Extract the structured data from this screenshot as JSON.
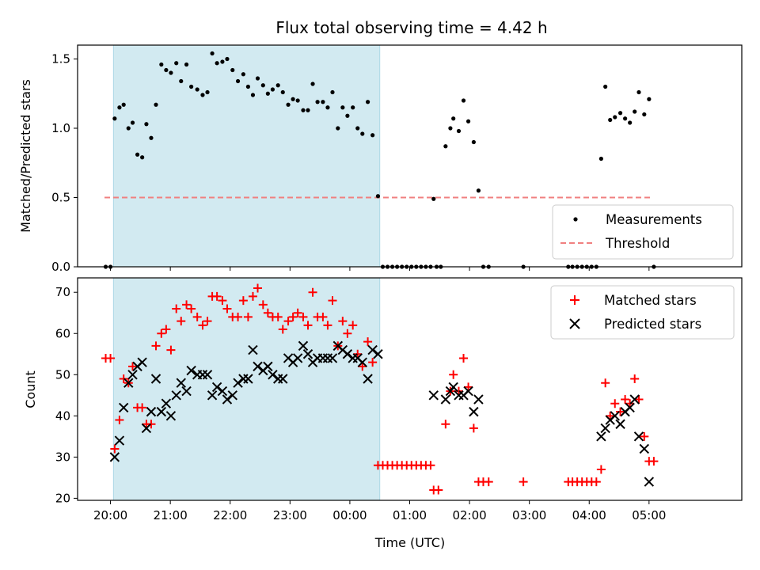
{
  "chart_data": {
    "type": "scatter",
    "title": "Flux total observing time = 4.42 h",
    "xlabel": "Time (UTC)",
    "x_unit": "hours",
    "x_ticks": [
      {
        "x": 20,
        "label": "20:00"
      },
      {
        "x": 21,
        "label": "21:00"
      },
      {
        "x": 22,
        "label": "22:00"
      },
      {
        "x": 23,
        "label": "23:00"
      },
      {
        "x": 24,
        "label": "00:00"
      },
      {
        "x": 25,
        "label": "01:00"
      },
      {
        "x": 26,
        "label": "02:00"
      },
      {
        "x": 27,
        "label": "03:00"
      },
      {
        "x": 28,
        "label": "04:00"
      },
      {
        "x": 29,
        "label": "05:00"
      }
    ],
    "xlim": [
      19.45,
      30.55
    ],
    "shaded_interval": [
      20.05,
      24.5
    ],
    "shade_color": "#add8e6",
    "top": {
      "ylabel": "Matched/Predicted stars",
      "ylim": [
        0,
        1.6
      ],
      "y_ticks": [
        0.0,
        0.5,
        1.0,
        1.5
      ],
      "y_tick_labels": [
        "0.0",
        "0.5",
        "1.0",
        "1.5"
      ],
      "legend": {
        "position": "lower-right",
        "measurements_label": "Measurements",
        "threshold_label": "Threshold"
      },
      "threshold": {
        "value": 0.5,
        "x": [
          19.9,
          29.05
        ],
        "color": "#f08080"
      },
      "measurements": [
        [
          19.92,
          0.0
        ],
        [
          20.0,
          0.0
        ],
        [
          20.07,
          1.07
        ],
        [
          20.15,
          1.15
        ],
        [
          20.22,
          1.17
        ],
        [
          20.3,
          1.0
        ],
        [
          20.37,
          1.04
        ],
        [
          20.45,
          0.81
        ],
        [
          20.53,
          0.79
        ],
        [
          20.6,
          1.03
        ],
        [
          20.68,
          0.93
        ],
        [
          20.76,
          1.17
        ],
        [
          20.85,
          1.46
        ],
        [
          20.93,
          1.42
        ],
        [
          21.01,
          1.4
        ],
        [
          21.1,
          1.47
        ],
        [
          21.18,
          1.34
        ],
        [
          21.27,
          1.46
        ],
        [
          21.35,
          1.3
        ],
        [
          21.45,
          1.28
        ],
        [
          21.54,
          1.24
        ],
        [
          21.62,
          1.26
        ],
        [
          21.7,
          1.54
        ],
        [
          21.78,
          1.47
        ],
        [
          21.87,
          1.48
        ],
        [
          21.95,
          1.5
        ],
        [
          22.04,
          1.42
        ],
        [
          22.13,
          1.34
        ],
        [
          22.22,
          1.39
        ],
        [
          22.3,
          1.3
        ],
        [
          22.38,
          1.24
        ],
        [
          22.46,
          1.36
        ],
        [
          22.55,
          1.31
        ],
        [
          22.63,
          1.25
        ],
        [
          22.71,
          1.28
        ],
        [
          22.8,
          1.31
        ],
        [
          22.88,
          1.26
        ],
        [
          22.97,
          1.17
        ],
        [
          23.05,
          1.21
        ],
        [
          23.13,
          1.2
        ],
        [
          23.22,
          1.13
        ],
        [
          23.3,
          1.13
        ],
        [
          23.38,
          1.32
        ],
        [
          23.46,
          1.19
        ],
        [
          23.55,
          1.19
        ],
        [
          23.63,
          1.15
        ],
        [
          23.71,
          1.26
        ],
        [
          23.8,
          1.0
        ],
        [
          23.88,
          1.15
        ],
        [
          23.96,
          1.09
        ],
        [
          24.05,
          1.15
        ],
        [
          24.13,
          1.0
        ],
        [
          24.21,
          0.96
        ],
        [
          24.3,
          1.19
        ],
        [
          24.38,
          0.95
        ],
        [
          24.47,
          0.51
        ],
        [
          24.55,
          0.0
        ],
        [
          24.63,
          0.0
        ],
        [
          24.71,
          0.0
        ],
        [
          24.79,
          0.0
        ],
        [
          24.87,
          0.0
        ],
        [
          24.95,
          0.0
        ],
        [
          25.03,
          0.0
        ],
        [
          25.11,
          0.0
        ],
        [
          25.19,
          0.0
        ],
        [
          25.27,
          0.0
        ],
        [
          25.35,
          0.0
        ],
        [
          25.45,
          0.0
        ],
        [
          25.4,
          0.49
        ],
        [
          25.52,
          0.0
        ],
        [
          25.6,
          0.87
        ],
        [
          25.68,
          1.0
        ],
        [
          25.73,
          1.07
        ],
        [
          25.82,
          0.98
        ],
        [
          25.9,
          1.2
        ],
        [
          25.98,
          1.05
        ],
        [
          26.07,
          0.9
        ],
        [
          26.15,
          0.55
        ],
        [
          26.23,
          0.0
        ],
        [
          26.32,
          0.0
        ],
        [
          26.9,
          0.0
        ],
        [
          27.65,
          0.0
        ],
        [
          27.72,
          0.0
        ],
        [
          27.8,
          0.0
        ],
        [
          27.88,
          0.0
        ],
        [
          27.96,
          0.0
        ],
        [
          28.04,
          0.0
        ],
        [
          28.12,
          0.0
        ],
        [
          28.2,
          0.78
        ],
        [
          28.27,
          1.3
        ],
        [
          28.35,
          1.06
        ],
        [
          28.43,
          1.08
        ],
        [
          28.52,
          1.11
        ],
        [
          28.6,
          1.07
        ],
        [
          28.68,
          1.04
        ],
        [
          28.76,
          1.12
        ],
        [
          28.83,
          1.26
        ],
        [
          28.92,
          1.1
        ],
        [
          29.0,
          1.21
        ],
        [
          29.08,
          0.0
        ]
      ]
    },
    "bottom": {
      "ylabel": "Count",
      "ylim": [
        19.5,
        73.5
      ],
      "y_ticks": [
        20,
        30,
        40,
        50,
        60,
        70
      ],
      "y_tick_labels": [
        "20",
        "30",
        "40",
        "50",
        "60",
        "70"
      ],
      "legend": {
        "position": "upper-right"
      },
      "series": [
        {
          "name": "Matched stars",
          "marker": "plus",
          "color": "#ff0000",
          "points": [
            [
              19.92,
              54
            ],
            [
              20.0,
              54
            ],
            [
              20.07,
              32
            ],
            [
              20.15,
              39
            ],
            [
              20.22,
              49
            ],
            [
              20.3,
              48
            ],
            [
              20.37,
              52
            ],
            [
              20.45,
              42
            ],
            [
              20.53,
              42
            ],
            [
              20.6,
              38
            ],
            [
              20.68,
              38
            ],
            [
              20.76,
              57
            ],
            [
              20.85,
              60
            ],
            [
              20.93,
              61
            ],
            [
              21.01,
              56
            ],
            [
              21.1,
              66
            ],
            [
              21.18,
              63
            ],
            [
              21.27,
              67
            ],
            [
              21.35,
              66
            ],
            [
              21.45,
              64
            ],
            [
              21.54,
              62
            ],
            [
              21.62,
              63
            ],
            [
              21.7,
              69
            ],
            [
              21.78,
              69
            ],
            [
              21.87,
              68
            ],
            [
              21.95,
              66
            ],
            [
              22.04,
              64
            ],
            [
              22.13,
              64
            ],
            [
              22.22,
              68
            ],
            [
              22.3,
              64
            ],
            [
              22.38,
              69
            ],
            [
              22.46,
              71
            ],
            [
              22.55,
              67
            ],
            [
              22.63,
              65
            ],
            [
              22.71,
              64
            ],
            [
              22.8,
              64
            ],
            [
              22.88,
              61
            ],
            [
              22.97,
              63
            ],
            [
              23.05,
              64
            ],
            [
              23.13,
              65
            ],
            [
              23.22,
              64
            ],
            [
              23.3,
              62
            ],
            [
              23.38,
              70
            ],
            [
              23.46,
              64
            ],
            [
              23.55,
              64
            ],
            [
              23.63,
              62
            ],
            [
              23.71,
              68
            ],
            [
              23.8,
              57
            ],
            [
              23.88,
              63
            ],
            [
              23.96,
              60
            ],
            [
              24.05,
              62
            ],
            [
              24.13,
              55
            ],
            [
              24.21,
              52
            ],
            [
              24.3,
              58
            ],
            [
              24.38,
              53
            ],
            [
              24.47,
              28
            ],
            [
              24.55,
              28
            ],
            [
              24.63,
              28
            ],
            [
              24.71,
              28
            ],
            [
              24.79,
              28
            ],
            [
              24.87,
              28
            ],
            [
              24.95,
              28
            ],
            [
              25.03,
              28
            ],
            [
              25.11,
              28
            ],
            [
              25.19,
              28
            ],
            [
              25.27,
              28
            ],
            [
              25.35,
              28
            ],
            [
              25.4,
              22
            ],
            [
              25.48,
              22
            ],
            [
              25.6,
              38
            ],
            [
              25.68,
              46
            ],
            [
              25.73,
              50
            ],
            [
              25.82,
              46
            ],
            [
              25.9,
              54
            ],
            [
              25.98,
              47
            ],
            [
              26.07,
              37
            ],
            [
              26.15,
              24
            ],
            [
              26.23,
              24
            ],
            [
              26.32,
              24
            ],
            [
              26.9,
              24
            ],
            [
              27.65,
              24
            ],
            [
              27.72,
              24
            ],
            [
              27.8,
              24
            ],
            [
              27.88,
              24
            ],
            [
              27.96,
              24
            ],
            [
              28.04,
              24
            ],
            [
              28.12,
              24
            ],
            [
              28.2,
              27
            ],
            [
              28.27,
              48
            ],
            [
              28.35,
              40
            ],
            [
              28.43,
              43
            ],
            [
              28.52,
              41
            ],
            [
              28.6,
              44
            ],
            [
              28.68,
              43
            ],
            [
              28.76,
              49
            ],
            [
              28.83,
              44
            ],
            [
              28.92,
              35
            ],
            [
              29.0,
              29
            ],
            [
              29.08,
              29
            ]
          ]
        },
        {
          "name": "Predicted stars",
          "marker": "x",
          "color": "#000000",
          "points": [
            [
              20.07,
              30
            ],
            [
              20.15,
              34
            ],
            [
              20.22,
              42
            ],
            [
              20.3,
              48
            ],
            [
              20.37,
              50
            ],
            [
              20.45,
              52
            ],
            [
              20.53,
              53
            ],
            [
              20.6,
              37
            ],
            [
              20.68,
              41
            ],
            [
              20.76,
              49
            ],
            [
              20.85,
              41
            ],
            [
              20.93,
              43
            ],
            [
              21.01,
              40
            ],
            [
              21.1,
              45
            ],
            [
              21.18,
              48
            ],
            [
              21.27,
              46
            ],
            [
              21.35,
              51
            ],
            [
              21.45,
              50
            ],
            [
              21.54,
              50
            ],
            [
              21.62,
              50
            ],
            [
              21.7,
              45
            ],
            [
              21.78,
              47
            ],
            [
              21.87,
              46
            ],
            [
              21.95,
              44
            ],
            [
              22.04,
              45
            ],
            [
              22.13,
              48
            ],
            [
              22.22,
              49
            ],
            [
              22.3,
              49
            ],
            [
              22.38,
              56
            ],
            [
              22.46,
              52
            ],
            [
              22.55,
              51
            ],
            [
              22.63,
              52
            ],
            [
              22.71,
              50
            ],
            [
              22.8,
              49
            ],
            [
              22.88,
              49
            ],
            [
              22.97,
              54
            ],
            [
              23.05,
              53
            ],
            [
              23.13,
              54
            ],
            [
              23.22,
              57
            ],
            [
              23.3,
              55
            ],
            [
              23.38,
              53
            ],
            [
              23.46,
              54
            ],
            [
              23.55,
              54
            ],
            [
              23.63,
              54
            ],
            [
              23.71,
              54
            ],
            [
              23.8,
              57
            ],
            [
              23.88,
              56
            ],
            [
              23.96,
              55
            ],
            [
              24.05,
              54
            ],
            [
              24.13,
              54
            ],
            [
              24.21,
              53
            ],
            [
              24.3,
              49
            ],
            [
              24.38,
              56
            ],
            [
              24.47,
              55
            ],
            [
              25.4,
              45
            ],
            [
              25.6,
              44
            ],
            [
              25.68,
              46
            ],
            [
              25.73,
              47
            ],
            [
              25.82,
              45
            ],
            [
              25.9,
              45
            ],
            [
              25.98,
              46
            ],
            [
              26.07,
              41
            ],
            [
              26.15,
              44
            ],
            [
              28.2,
              35
            ],
            [
              28.27,
              37
            ],
            [
              28.35,
              39
            ],
            [
              28.43,
              40
            ],
            [
              28.52,
              38
            ],
            [
              28.6,
              41
            ],
            [
              28.68,
              42
            ],
            [
              28.76,
              44
            ],
            [
              28.83,
              35
            ],
            [
              28.92,
              32
            ],
            [
              29.0,
              24
            ]
          ]
        }
      ]
    }
  }
}
